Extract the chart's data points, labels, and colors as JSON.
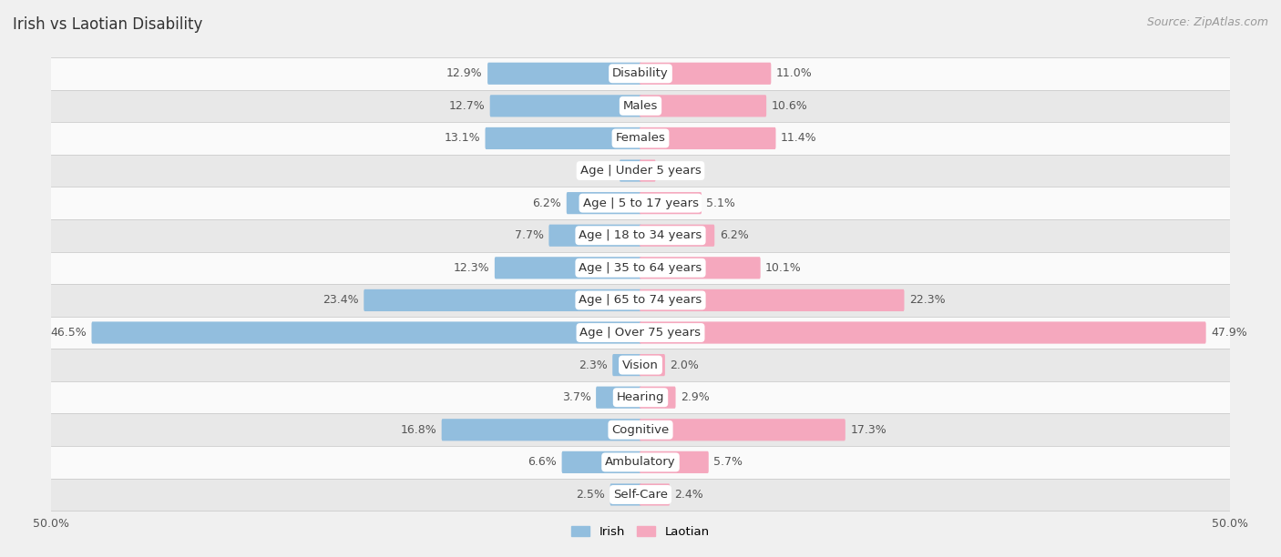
{
  "title": "Irish vs Laotian Disability",
  "source": "Source: ZipAtlas.com",
  "categories": [
    "Disability",
    "Males",
    "Females",
    "Age | Under 5 years",
    "Age | 5 to 17 years",
    "Age | 18 to 34 years",
    "Age | 35 to 64 years",
    "Age | 65 to 74 years",
    "Age | Over 75 years",
    "Vision",
    "Hearing",
    "Cognitive",
    "Ambulatory",
    "Self-Care"
  ],
  "irish_values": [
    12.9,
    12.7,
    13.1,
    1.7,
    6.2,
    7.7,
    12.3,
    23.4,
    46.5,
    2.3,
    3.7,
    16.8,
    6.6,
    2.5
  ],
  "laotian_values": [
    11.0,
    10.6,
    11.4,
    1.2,
    5.1,
    6.2,
    10.1,
    22.3,
    47.9,
    2.0,
    2.9,
    17.3,
    5.7,
    2.4
  ],
  "irish_color": "#92bede",
  "laotian_color": "#f5a8be",
  "irish_label": "Irish",
  "laotian_label": "Laotian",
  "x_max": 50.0,
  "background_color": "#f0f0f0",
  "row_bg_light": "#fafafa",
  "row_bg_dark": "#e8e8e8",
  "title_fontsize": 12,
  "label_fontsize": 9.5,
  "value_fontsize": 9,
  "tick_fontsize": 9,
  "source_fontsize": 9
}
